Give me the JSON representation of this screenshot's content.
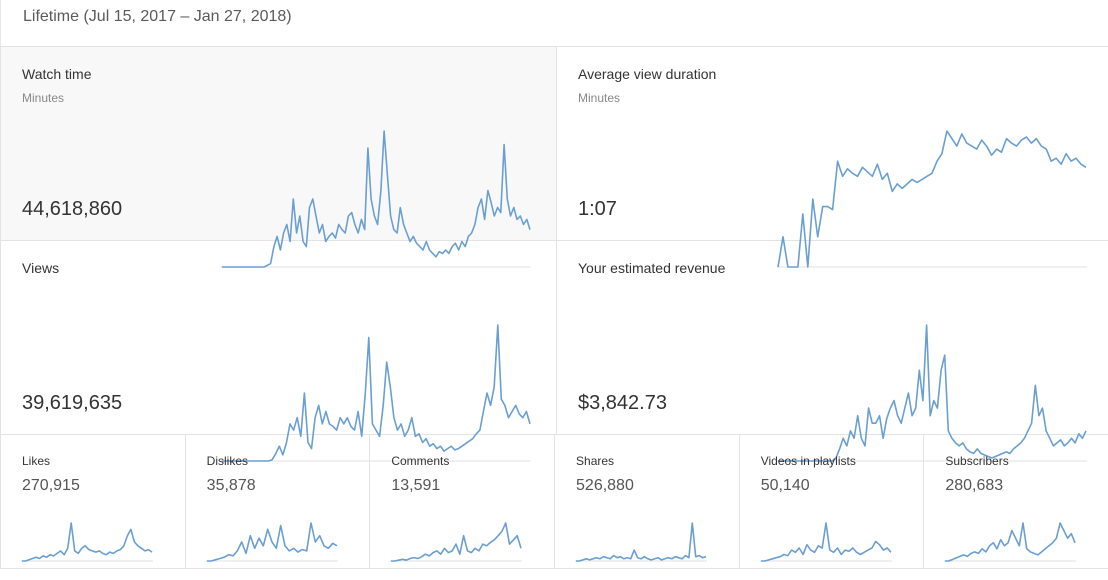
{
  "header": {
    "range_label": "Lifetime (Jul 15, 2017 – Jan 27, 2018)"
  },
  "colors": {
    "line": "#6a9fd2",
    "selected_bg": "#f8f8f8",
    "border": "#e3e3e3"
  },
  "big_cards": [
    {
      "title": "Watch time",
      "subtitle": "Minutes",
      "value": "44,618,860",
      "selected": true
    },
    {
      "title": "Average view duration",
      "subtitle": "Minutes",
      "value": "1:07",
      "selected": false
    },
    {
      "title": "Views",
      "subtitle": "",
      "value": "39,619,635",
      "selected": false
    },
    {
      "title": "Your estimated revenue",
      "subtitle": "",
      "value": "$3,842.73",
      "selected": false
    }
  ],
  "small_cards": [
    {
      "title": "Likes",
      "value": "270,915"
    },
    {
      "title": "Dislikes",
      "value": "35,878"
    },
    {
      "title": "Comments",
      "value": "13,591"
    },
    {
      "title": "Shares",
      "value": "526,880"
    },
    {
      "title": "Videos in playlists",
      "value": "50,140"
    },
    {
      "title": "Subscribers",
      "value": "280,683"
    }
  ],
  "sparklines": {
    "watch_time": [
      0,
      0,
      0,
      0,
      0,
      0,
      0,
      0,
      0,
      0,
      0,
      0,
      0,
      0,
      1,
      2,
      12,
      18,
      10,
      20,
      25,
      15,
      40,
      20,
      30,
      15,
      12,
      35,
      40,
      30,
      20,
      25,
      15,
      18,
      20,
      17,
      25,
      22,
      20,
      30,
      32,
      25,
      20,
      28,
      22,
      70,
      40,
      30,
      25,
      45,
      80,
      55,
      30,
      22,
      20,
      35,
      25,
      20,
      15,
      18,
      14,
      12,
      10,
      15,
      10,
      8,
      6,
      9,
      8,
      10,
      8,
      12,
      14,
      10,
      15,
      12,
      18,
      20,
      25,
      35,
      40,
      28,
      45,
      38,
      30,
      35,
      32,
      72,
      40,
      30,
      35,
      28,
      30,
      25,
      28,
      22
    ],
    "avg_view_duration": [
      0,
      20,
      0,
      0,
      0,
      35,
      0,
      45,
      20,
      40,
      40,
      38,
      70,
      60,
      65,
      62,
      60,
      66,
      63,
      60,
      68,
      58,
      62,
      50,
      55,
      52,
      55,
      58,
      56,
      58,
      60,
      62,
      70,
      75,
      90,
      85,
      80,
      88,
      82,
      80,
      78,
      84,
      80,
      74,
      78,
      76,
      85,
      82,
      80,
      84,
      86,
      82,
      85,
      80,
      78,
      70,
      72,
      68,
      75,
      70,
      72,
      68,
      66
    ],
    "views": [
      0,
      0,
      0,
      0,
      0,
      0,
      0,
      0,
      0,
      0,
      0,
      0,
      0,
      0,
      1,
      6,
      12,
      5,
      15,
      30,
      25,
      35,
      20,
      55,
      15,
      10,
      35,
      45,
      30,
      40,
      30,
      28,
      25,
      35,
      30,
      35,
      28,
      25,
      40,
      20,
      55,
      100,
      30,
      25,
      20,
      45,
      80,
      60,
      35,
      25,
      30,
      20,
      25,
      35,
      20,
      22,
      15,
      18,
      12,
      14,
      10,
      12,
      8,
      10,
      12,
      9,
      10,
      12,
      14,
      16,
      18,
      22,
      25,
      40,
      55,
      45,
      60,
      110,
      50,
      45,
      35,
      40,
      45,
      38,
      35,
      40,
      30
    ],
    "revenue": [
      0,
      0,
      0,
      0,
      0,
      0,
      0,
      0,
      0,
      0,
      0,
      0,
      0,
      0,
      0,
      0,
      2,
      8,
      15,
      10,
      20,
      15,
      30,
      15,
      10,
      35,
      25,
      25,
      30,
      15,
      28,
      35,
      40,
      30,
      25,
      35,
      45,
      30,
      35,
      60,
      40,
      90,
      30,
      40,
      35,
      60,
      70,
      20,
      15,
      12,
      10,
      12,
      8,
      6,
      5,
      8,
      5,
      4,
      3,
      2,
      3,
      4,
      5,
      6,
      5,
      8,
      10,
      12,
      15,
      20,
      25,
      50,
      30,
      35,
      20,
      15,
      10,
      12,
      14,
      10,
      12,
      15,
      12,
      18,
      15,
      20
    ],
    "likes": [
      0,
      0,
      1,
      2,
      3,
      2,
      4,
      3,
      5,
      4,
      6,
      8,
      5,
      10,
      30,
      8,
      6,
      10,
      12,
      9,
      8,
      7,
      8,
      6,
      5,
      7,
      6,
      8,
      9,
      12,
      20,
      25,
      15,
      12,
      10,
      8,
      9,
      7
    ],
    "dislikes": [
      0,
      0,
      1,
      2,
      3,
      5,
      4,
      8,
      15,
      6,
      20,
      10,
      18,
      12,
      25,
      15,
      10,
      28,
      12,
      8,
      10,
      7,
      9,
      8,
      30,
      15,
      20,
      12,
      10,
      14,
      12
    ],
    "comments": [
      0,
      0,
      1,
      2,
      1,
      3,
      4,
      3,
      5,
      8,
      6,
      10,
      12,
      8,
      15,
      10,
      12,
      20,
      8,
      30,
      12,
      10,
      15,
      12,
      20,
      18,
      22,
      25,
      30,
      35,
      45,
      20,
      25,
      30,
      15
    ],
    "shares": [
      0,
      0,
      1,
      2,
      1,
      2,
      3,
      2,
      4,
      3,
      2,
      5,
      3,
      4,
      2,
      3,
      2,
      10,
      3,
      2,
      4,
      2,
      1,
      2,
      3,
      1,
      2,
      3,
      2,
      4,
      3,
      2,
      5,
      3,
      35,
      4,
      5,
      3,
      4
    ],
    "videos_in_playlists": [
      0,
      0,
      1,
      2,
      3,
      4,
      6,
      5,
      10,
      8,
      12,
      6,
      15,
      10,
      8,
      14,
      12,
      35,
      10,
      8,
      12,
      6,
      10,
      9,
      12,
      8,
      6,
      8,
      10,
      12,
      18,
      15,
      10,
      12,
      8
    ],
    "subscribers": [
      0,
      0,
      1,
      2,
      3,
      4,
      3,
      5,
      6,
      5,
      8,
      6,
      10,
      12,
      8,
      14,
      10,
      12,
      20,
      15,
      10,
      25,
      8,
      6,
      5,
      4,
      6,
      8,
      10,
      12,
      15,
      25,
      20,
      15,
      18,
      12
    ]
  }
}
